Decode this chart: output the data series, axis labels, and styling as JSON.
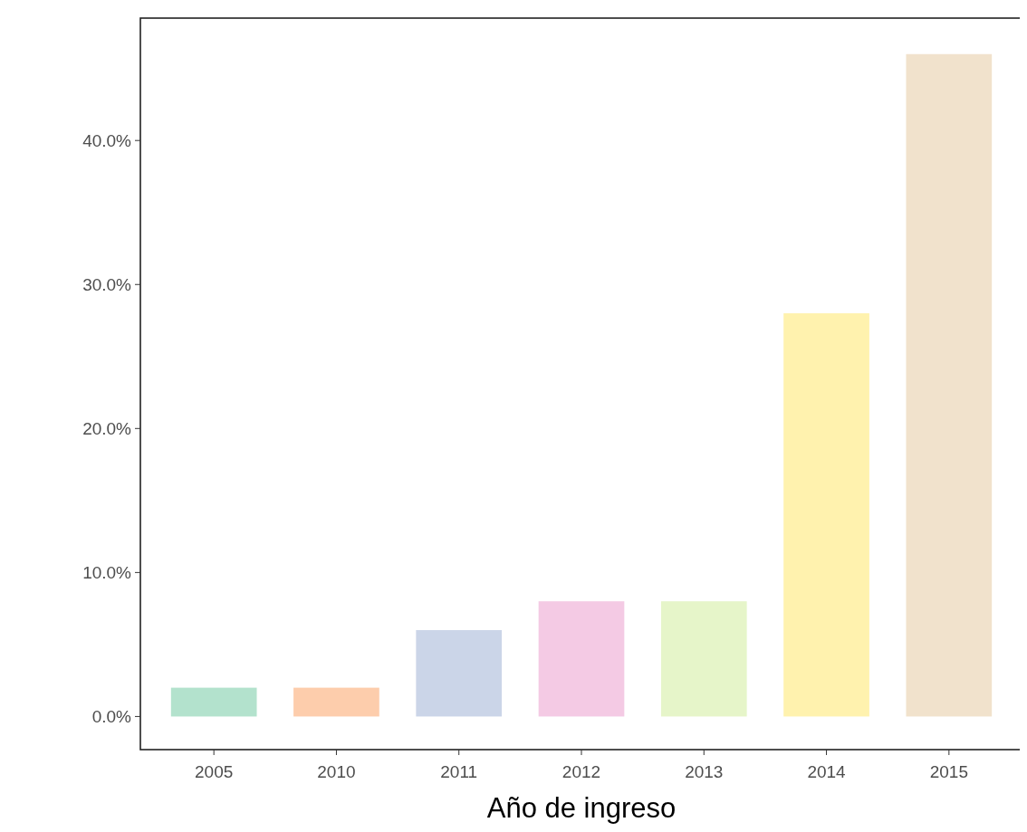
{
  "chart_data": {
    "type": "bar",
    "xlabel": "Año de ingreso",
    "categories": [
      "2005",
      "2010",
      "2011",
      "2012",
      "2013",
      "2014",
      "2015"
    ],
    "values": [
      2,
      2,
      6,
      8,
      8,
      28,
      46
    ],
    "colors": [
      "#b3e2cd",
      "#fdcdac",
      "#cbd5e8",
      "#f4cae4",
      "#e6f5c9",
      "#fff2ae",
      "#f1e2cc"
    ],
    "ylim": [
      -2.3,
      48.5
    ],
    "yticks": [
      {
        "value": 0,
        "label": "0.0%"
      },
      {
        "value": 10,
        "label": "10.0%"
      },
      {
        "value": 20,
        "label": "20.0%"
      },
      {
        "value": 30,
        "label": "30.0%"
      },
      {
        "value": 40,
        "label": "40.0%"
      }
    ],
    "grid": false
  }
}
